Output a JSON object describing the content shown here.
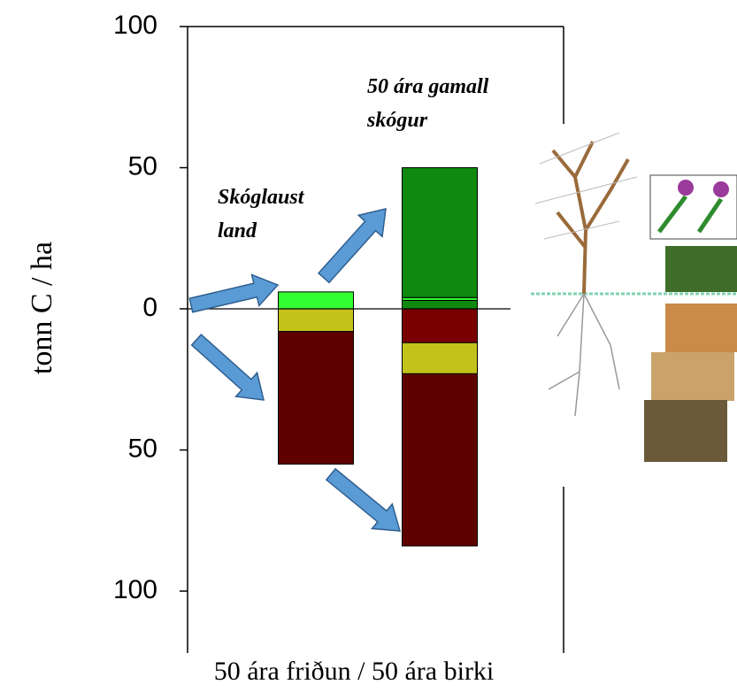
{
  "chart_data": {
    "type": "stacked-bar",
    "y_label": "tonn C / ha",
    "x_label": "50 ára friðun / 50 ára birki",
    "ylim": [
      -121,
      100
    ],
    "yticks": [
      {
        "value": -100,
        "label": "100"
      },
      {
        "value": -50,
        "label": "50"
      },
      0,
      50,
      100
    ],
    "annotations": [
      {
        "lines": [
          "Skóglaust",
          "land"
        ]
      },
      {
        "lines": [
          "50 ára gamall",
          "skógur"
        ]
      }
    ],
    "series": [
      {
        "color": "#0f8a0f",
        "values": [
          null,
          3
        ]
      },
      {
        "color": "#33ff33",
        "values": [
          6,
          1
        ]
      },
      {
        "color": "#0f8a0f",
        "values": [
          null,
          46
        ]
      },
      {
        "color": "#7a0000",
        "values": [
          null,
          -12
        ]
      },
      {
        "color": "#c2c21a",
        "values": [
          -8,
          -11
        ]
      },
      {
        "color": "#5e0000",
        "values": [
          -47,
          -61
        ]
      }
    ]
  }
}
